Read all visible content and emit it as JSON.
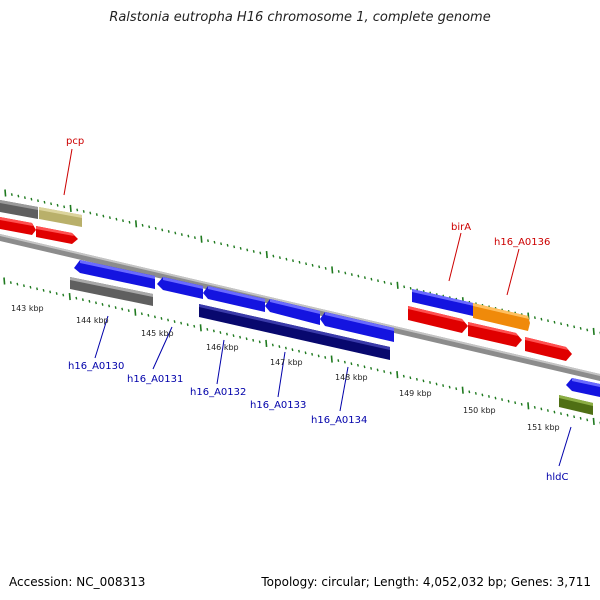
{
  "title": "Ralstonia eutropha H16 chromosome 1, complete genome",
  "footer": {
    "accession": "Accession: NC_008313",
    "info": "Topology: circular; Length: 4,052,032 bp; Genes: 3,711"
  },
  "colors": {
    "backbone": "#8a8a8a",
    "tick": "#1f7a1f",
    "cds_forward": "#1a1aee",
    "cds_reverse": "#ee1111",
    "hypothetical": "#0b0b78",
    "pseudo_gray": "#6e6e6e",
    "khaki": "#c8bf7a",
    "orange": "#f59a1a",
    "olive": "#5e7f1e",
    "label_red": "#cc0000",
    "label_blue": "#0000aa"
  },
  "scale_labels": [
    "143 kbp",
    "144 kbp",
    "145 kbp",
    "146 kbp",
    "147 kbp",
    "148 kbp",
    "149 kbp",
    "150 kbp",
    "151 kbp"
  ],
  "gene_labels": {
    "top": [
      "pcp",
      "birA",
      "h16_A0136"
    ],
    "bottom": [
      "h16_A0130",
      "h16_A0131",
      "h16_A0132",
      "h16_A0133",
      "h16_A0134",
      "hldC"
    ]
  }
}
